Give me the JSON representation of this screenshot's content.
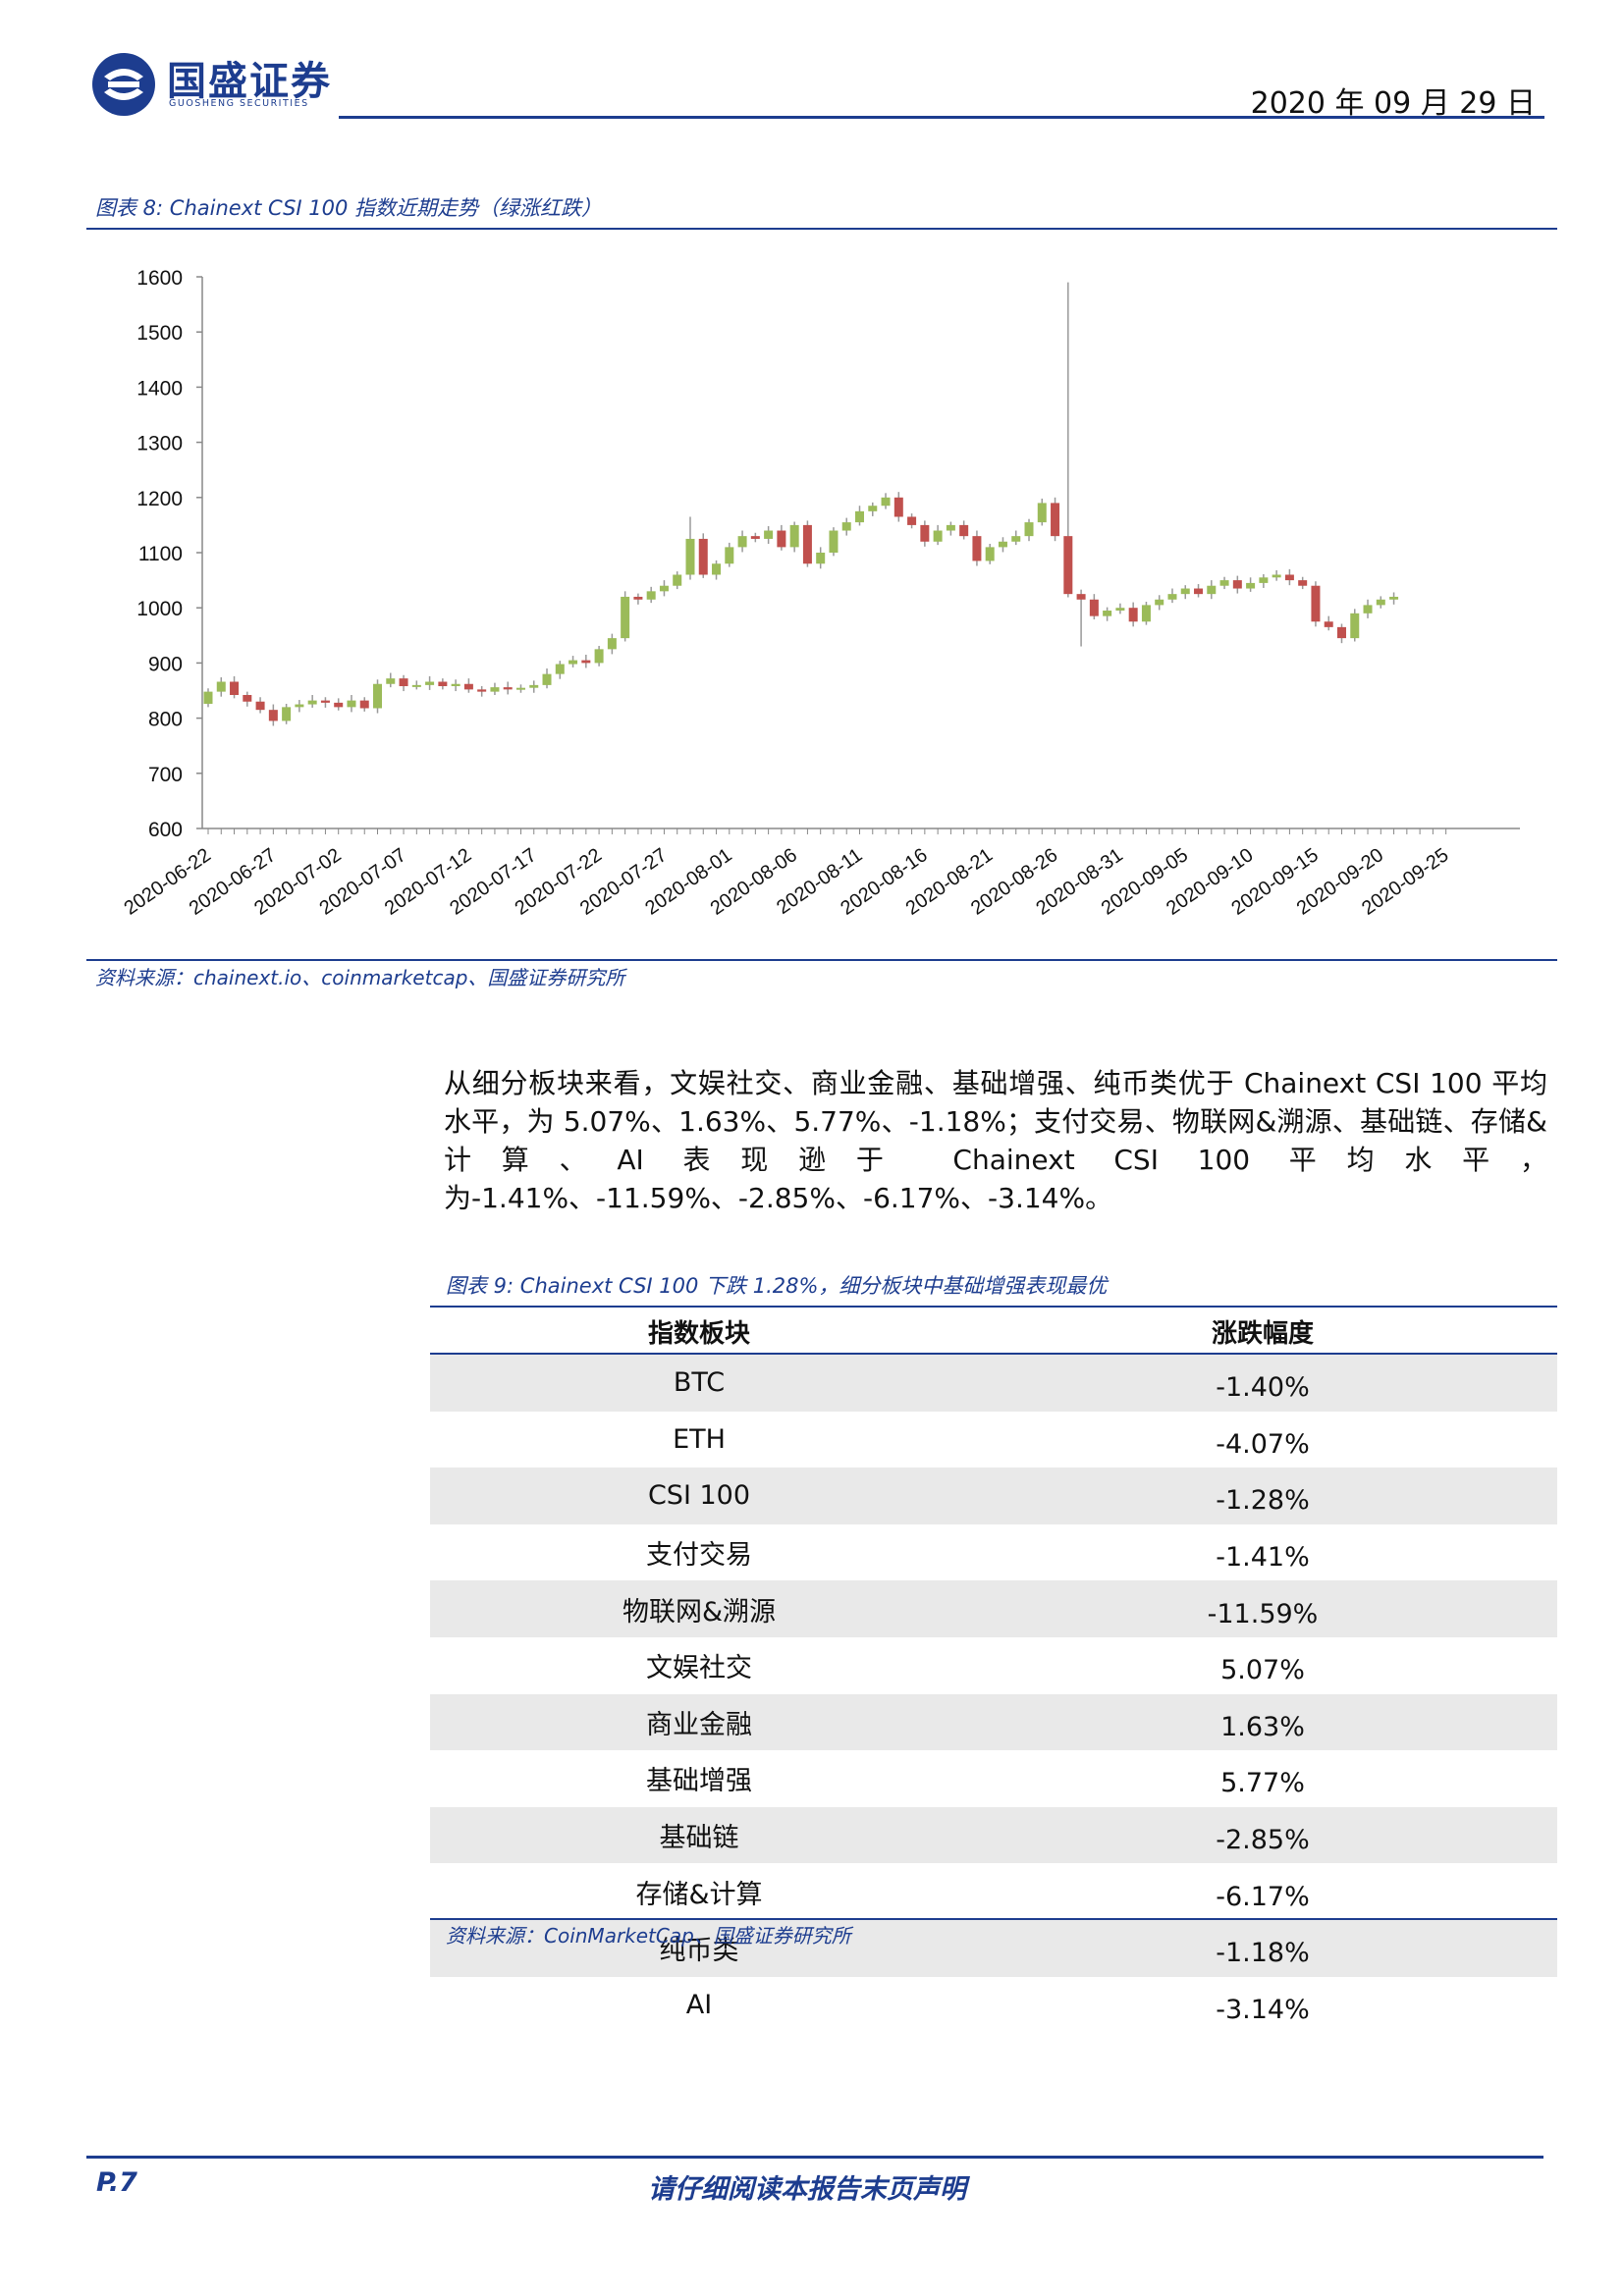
{
  "header": {
    "brand_cn": "国盛证券",
    "brand_en": "GUOSHENG SECURITIES",
    "date": "2020 年 09 月 29 日"
  },
  "figure8": {
    "title": "图表 8:  Chainext CSI 100 指数近期走势（绿涨红跌）",
    "source": "资料来源：chainext.io、coinmarketcap、国盛证券研究所"
  },
  "chart_data": {
    "type": "candlestick",
    "title": "",
    "xlabel": "",
    "ylabel": "",
    "ylim": [
      600,
      1600
    ],
    "yticks": [
      600,
      700,
      800,
      900,
      1000,
      1100,
      1200,
      1300,
      1400,
      1500,
      1600
    ],
    "grid": false,
    "legend": "none",
    "colors": {
      "up": "#9bbb59",
      "down": "#c0504d",
      "axis": "#888888"
    },
    "x_tick_labels": [
      "2020-06-22",
      "2020-06-27",
      "2020-07-02",
      "2020-07-07",
      "2020-07-12",
      "2020-07-17",
      "2020-07-22",
      "2020-07-27",
      "2020-08-01",
      "2020-08-06",
      "2020-08-11",
      "2020-08-16",
      "2020-08-21",
      "2020-08-26",
      "2020-08-31",
      "2020-09-05",
      "2020-09-10",
      "2020-09-15",
      "2020-09-20",
      "2020-09-25"
    ],
    "start_date": "2020-06-22",
    "close_series": [
      848,
      866,
      842,
      830,
      815,
      795,
      820,
      825,
      832,
      828,
      820,
      832,
      818,
      862,
      872,
      858,
      860,
      866,
      858,
      862,
      852,
      848,
      856,
      852,
      855,
      860,
      880,
      898,
      905,
      900,
      925,
      945,
      1020,
      1015,
      1030,
      1040,
      1060,
      1125,
      1060,
      1080,
      1110,
      1130,
      1125,
      1140,
      1110,
      1150,
      1080,
      1100,
      1140,
      1155,
      1175,
      1185,
      1200,
      1165,
      1150,
      1120,
      1140,
      1150,
      1130,
      1085,
      1110,
      1120,
      1130,
      1155,
      1190,
      1130,
      1025,
      1015,
      985,
      995,
      1000,
      975,
      1005,
      1015,
      1025,
      1035,
      1025,
      1040,
      1050,
      1035,
      1045,
      1055,
      1060,
      1050,
      1040,
      975,
      965,
      945,
      990,
      1005,
      1015,
      1020
    ]
  },
  "paragraph": "从细分板块来看，文娱社交、商业金融、基础增强、纯币类优于 Chainext CSI 100 平均水平，为 5.07%、1.63%、5.77%、-1.18%；支付交易、物联网&溯源、基础链、存储&计算、AI 表现逊于 Chainext CSI 100 平均水平，为-1.41%、-11.59%、-2.85%、-6.17%、-3.14%。",
  "table9": {
    "title": "图表 9:  Chainext CSI 100 下跌 1.28%，细分板块中基础增强表现最优",
    "headers": [
      "指数板块",
      "涨跌幅度"
    ],
    "rows": [
      [
        "BTC",
        "-1.40%"
      ],
      [
        "ETH",
        "-4.07%"
      ],
      [
        "CSI 100",
        "-1.28%"
      ],
      [
        "支付交易",
        "-1.41%"
      ],
      [
        "物联网&溯源",
        "-11.59%"
      ],
      [
        "文娱社交",
        "5.07%"
      ],
      [
        "商业金融",
        "1.63%"
      ],
      [
        "基础增强",
        "5.77%"
      ],
      [
        "基础链",
        "-2.85%"
      ],
      [
        "存储&计算",
        "-6.17%"
      ],
      [
        "纯币类",
        "-1.18%"
      ],
      [
        "AI",
        "-3.14%"
      ]
    ],
    "source": "资料来源：CoinMarketCap、国盛证券研究所"
  },
  "footer": {
    "page": "P.7",
    "note": "请仔细阅读本报告末页声明"
  }
}
